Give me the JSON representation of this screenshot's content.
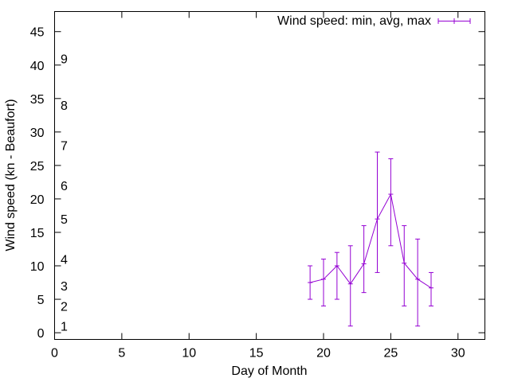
{
  "colors": {
    "series": "#9400d3",
    "axis": "#000000",
    "background": "#ffffff"
  },
  "chart_data": {
    "type": "line",
    "title": "",
    "xlabel": "Day of Month",
    "ylabel": "Wind speed (kn - Beaufort)",
    "xlim": [
      0,
      32
    ],
    "ylim": [
      -1,
      48
    ],
    "xticks": [
      0,
      5,
      10,
      15,
      20,
      25,
      30
    ],
    "yticks": [
      0,
      5,
      10,
      15,
      20,
      25,
      30,
      35,
      40,
      45
    ],
    "grid": false,
    "legend": {
      "position": "top-right",
      "label": "Wind speed: min, avg, max"
    },
    "beaufort_labels": [
      {
        "label": "1",
        "y": 1
      },
      {
        "label": "2",
        "y": 4
      },
      {
        "label": "3",
        "y": 7
      },
      {
        "label": "4",
        "y": 11
      },
      {
        "label": "5",
        "y": 17
      },
      {
        "label": "6",
        "y": 22
      },
      {
        "label": "7",
        "y": 28
      },
      {
        "label": "8",
        "y": 34
      },
      {
        "label": "9",
        "y": 41
      }
    ],
    "series": [
      {
        "name": "Wind speed: min, avg, max",
        "x": [
          19,
          20,
          21,
          22,
          23,
          24,
          25,
          26,
          27,
          28
        ],
        "avg": [
          7.5,
          8,
          10,
          7.3,
          10.3,
          17,
          20.7,
          10.4,
          8,
          6.7
        ],
        "min": [
          5,
          4,
          5,
          1,
          6,
          9,
          13,
          4,
          1,
          4
        ],
        "max": [
          10,
          11,
          12,
          13,
          16,
          27,
          26,
          16,
          14,
          9
        ]
      }
    ]
  }
}
